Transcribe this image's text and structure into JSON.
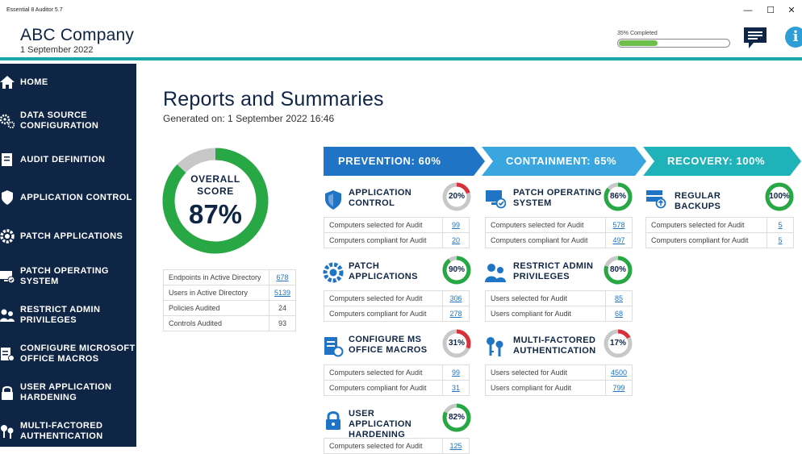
{
  "window": {
    "title": "Essential 8 Auditor 5.7",
    "minimize": "—",
    "maximize": "☐",
    "close": "✕"
  },
  "header": {
    "company": "ABC Company",
    "date": "1 September 2022",
    "progress_label": "35% Completed",
    "progress_value": 0.35,
    "info_glyph": "i"
  },
  "sidebar": {
    "items": [
      {
        "label": "HOME",
        "icon": "home-icon"
      },
      {
        "label": "DATA SOURCE CONFIGURATION",
        "icon": "gears-icon"
      },
      {
        "label": "AUDIT DEFINITION",
        "icon": "document-icon"
      },
      {
        "label": "APPLICATION CONTROL",
        "icon": "shield-icon"
      },
      {
        "label": "PATCH APPLICATIONS",
        "icon": "gear-refresh-icon"
      },
      {
        "label": "PATCH OPERATING SYSTEM",
        "icon": "monitor-check-icon"
      },
      {
        "label": "RESTRICT ADMIN PRIVILEGES",
        "icon": "admin-users-icon"
      },
      {
        "label": "CONFIGURE MICROSOFT OFFICE MACROS",
        "icon": "macro-document-icon"
      },
      {
        "label": "USER APPLICATION HARDENING",
        "icon": "padlock-icon"
      },
      {
        "label": "MULTI-FACTORED AUTHENTICATION",
        "icon": "keys-icon"
      }
    ]
  },
  "main": {
    "title": "Reports and Summaries",
    "generated": "Generated on: 1 September 2022  16:46",
    "overall": {
      "label1": "OVERALL",
      "label2": "SCORE",
      "value": "87%",
      "fraction": 0.87
    },
    "stats": [
      {
        "label": "Endpoints in Active Directory",
        "value": "678",
        "link": true
      },
      {
        "label": "Users in Active Directory",
        "value": "5139",
        "link": true
      },
      {
        "label": "Policies Audited",
        "value": "24",
        "link": false
      },
      {
        "label": "Controls Audited",
        "value": "93",
        "link": false
      }
    ],
    "banners": [
      {
        "label": "PREVENTION: 60%",
        "color": "#1f74c6"
      },
      {
        "label": "CONTAINMENT: 65%",
        "color": "#3aa6df"
      },
      {
        "label": "RECOVERY: 100%",
        "color": "#1fb3b9"
      }
    ],
    "categories": [
      {
        "title": "APPLICATION CONTROL",
        "icon": "shield-icon",
        "pct": "20%",
        "fraction": 0.2,
        "rows": [
          {
            "label": "Computers selected for Audit",
            "value": "99"
          },
          {
            "label": "Computers compliant for Audit",
            "value": "20"
          }
        ]
      },
      {
        "title": "PATCH APPLICATIONS",
        "icon": "gear-refresh-icon",
        "pct": "90%",
        "fraction": 0.9,
        "rows": [
          {
            "label": "Computers selected for Audit",
            "value": "306"
          },
          {
            "label": "Computers compliant for Audit",
            "value": "278"
          }
        ]
      },
      {
        "title": "CONFIGURE MS OFFICE MACROS",
        "icon": "macro-document-icon",
        "pct": "31%",
        "fraction": 0.31,
        "rows": [
          {
            "label": "Computers selected for Audit",
            "value": "99"
          },
          {
            "label": "Computers compliant for Audit",
            "value": "31"
          }
        ]
      },
      {
        "title": "USER APPLICATION HARDENING",
        "icon": "padlock-icon",
        "pct": "82%",
        "fraction": 0.82,
        "rows": [
          {
            "label": "Computers selected for Audit",
            "value": "125"
          }
        ]
      },
      {
        "title": "PATCH OPERATING SYSTEM",
        "icon": "monitor-check-icon",
        "pct": "86%",
        "fraction": 0.86,
        "rows": [
          {
            "label": "Computers selected for Audit",
            "value": "578"
          },
          {
            "label": "Computers compliant for Audit",
            "value": "497"
          }
        ]
      },
      {
        "title": "RESTRICT ADMIN PRIVILEGES",
        "icon": "admin-users-icon",
        "pct": "80%",
        "fraction": 0.8,
        "rows": [
          {
            "label": "Users selected for Audit",
            "value": "85"
          },
          {
            "label": "Users compliant for Audit",
            "value": "68"
          }
        ]
      },
      {
        "title": "MULTI-FACTORED AUTHENTICATION",
        "icon": "keys-icon",
        "pct": "17%",
        "fraction": 0.17,
        "rows": [
          {
            "label": "Users selected for Audit",
            "value": "4500"
          },
          {
            "label": "Users compliant for Audit",
            "value": "799"
          }
        ]
      },
      {
        "title": "REGULAR BACKUPS",
        "icon": "backup-server-icon",
        "pct": "100%",
        "fraction": 1.0,
        "rows": [
          {
            "label": "Computers selected for Audit",
            "value": "5"
          },
          {
            "label": "Computers compliant for Audit",
            "value": "5"
          }
        ]
      }
    ]
  },
  "colors": {
    "navy": "#0f2545",
    "teal": "#1aa6ad",
    "good": "#27a844",
    "bad": "#d9313a",
    "track": "#c8c8c8",
    "link": "#1f74c6"
  }
}
